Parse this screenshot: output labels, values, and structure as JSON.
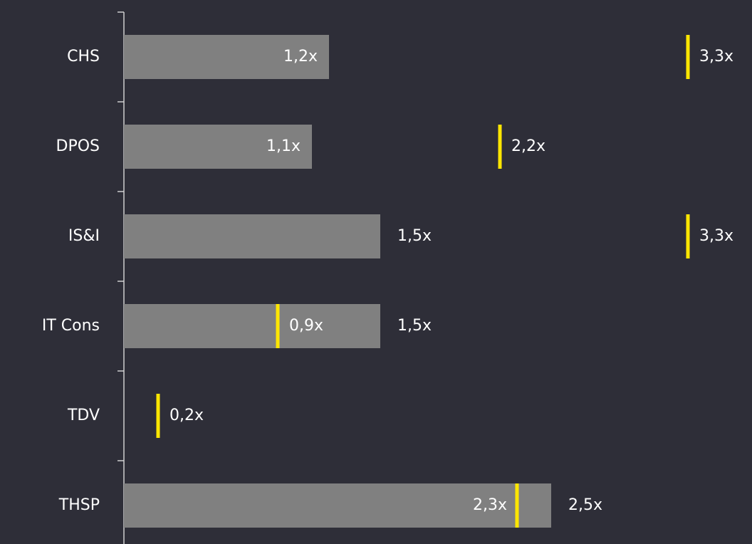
{
  "chart_data": {
    "type": "bar-with-markers",
    "categories": [
      "CHS",
      "DPOS",
      "IS&I",
      "IT Cons",
      "TDV",
      "THSP"
    ],
    "series": [
      {
        "color": "#808080",
        "values": [
          1.2,
          1.1,
          1.5,
          1.5,
          null,
          2.5
        ],
        "value_labels": [
          "1,2x",
          "1,1x",
          "1,5x",
          "1,5x",
          null,
          "2,5x"
        ]
      },
      {
        "color": "#ffe600",
        "values": [
          3.3,
          2.2,
          3.3,
          0.9,
          0.2,
          2.3
        ],
        "value_labels": [
          "3,3x",
          "2,2x",
          "3,3x",
          "0,9x",
          "0,2x",
          "2,3x"
        ]
      }
    ]
  }
}
